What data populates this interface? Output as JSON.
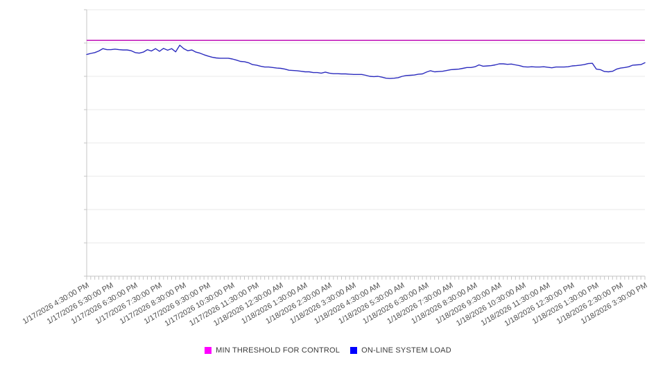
{
  "chart_data": {
    "type": "line",
    "title": "",
    "xlabel": "",
    "ylabel": "",
    "y_axis": {
      "tick_labels_visible": false,
      "divisions": 8,
      "normalized_range": [
        0,
        100
      ],
      "grid": true
    },
    "legend_position": "bottom",
    "x_labels": [
      "1/17/2026 4:30:00 PM",
      "1/17/2026 5:30:00 PM",
      "1/17/2026 6:30:00 PM",
      "1/17/2026 7:30:00 PM",
      "1/17/2026 8:30:00 PM",
      "1/17/2026 9:30:00 PM",
      "1/17/2026 10:30:00 PM",
      "1/17/2026 11:30:00 PM",
      "1/18/2026 12:30:00 AM",
      "1/18/2026 1:30:00 AM",
      "1/18/2026 2:30:00 AM",
      "1/18/2026 3:30:00 AM",
      "1/18/2026 4:30:00 AM",
      "1/18/2026 5:30:00 AM",
      "1/18/2026 6:30:00 AM",
      "1/18/2026 7:30:00 AM",
      "1/18/2026 8:30:00 AM",
      "1/18/2026 9:30:00 AM",
      "1/18/2026 10:30:00 AM",
      "1/18/2026 11:30:00 AM",
      "1/18/2026 12:30:00 PM",
      "1/18/2026 1:30:00 PM",
      "1/18/2026 2:30:00 PM",
      "1/18/2026 3:30:00 PM"
    ],
    "series": [
      {
        "name": "MIN THRESHOLD FOR CONTROL",
        "kind": "threshold",
        "legend_color": "#FF00FF",
        "stroke_color": "#C41FBC",
        "value": 88.5
      },
      {
        "name": "ON-LINE SYSTEM LOAD",
        "kind": "line",
        "legend_color": "#0000FF",
        "stroke_color": "#2B2BBE",
        "values": [
          83.2,
          83.6,
          83.9,
          84.5,
          85.4,
          85.0,
          85.0,
          85.2,
          85.0,
          84.9,
          84.9,
          84.6,
          83.9,
          83.7,
          84.1,
          85.0,
          84.5,
          85.4,
          84.4,
          85.5,
          84.8,
          85.4,
          84.2,
          86.7,
          85.4,
          84.6,
          84.9,
          84.1,
          83.7,
          83.1,
          82.6,
          82.2,
          81.9,
          81.8,
          81.8,
          81.8,
          81.5,
          81.1,
          80.6,
          80.5,
          80.1,
          79.4,
          79.2,
          78.8,
          78.5,
          78.5,
          78.3,
          78.1,
          78.0,
          77.7,
          77.3,
          77.2,
          77.1,
          76.9,
          76.7,
          76.7,
          76.4,
          76.4,
          76.2,
          76.6,
          76.2,
          76.0,
          76.0,
          75.9,
          75.9,
          75.8,
          75.7,
          75.7,
          75.7,
          75.4,
          75.0,
          74.9,
          75.0,
          74.7,
          74.3,
          74.2,
          74.3,
          74.5,
          75.0,
          75.3,
          75.4,
          75.5,
          75.8,
          75.9,
          76.6,
          77.1,
          76.7,
          76.8,
          76.9,
          77.2,
          77.5,
          77.6,
          77.7,
          78.0,
          78.3,
          78.3,
          78.6,
          79.3,
          78.8,
          78.9,
          79.0,
          79.3,
          79.7,
          79.7,
          79.5,
          79.6,
          79.3,
          79.0,
          78.6,
          78.5,
          78.6,
          78.5,
          78.5,
          78.6,
          78.4,
          78.2,
          78.5,
          78.5,
          78.5,
          78.6,
          78.9,
          79.0,
          79.2,
          79.4,
          79.8,
          79.9,
          77.7,
          77.5,
          76.8,
          76.7,
          76.9,
          77.7,
          78.1,
          78.3,
          78.6,
          79.2,
          79.3,
          79.4,
          80.1
        ]
      }
    ],
    "colors": {
      "grid_line": "#E9E9E9",
      "axis_line": "#C4C4C4",
      "tick_mark": "#C4C4C4",
      "x_label_text": "#4D4D4D",
      "legend_text": "#3A3A3A",
      "background": "#FFFFFF"
    }
  },
  "legend": {
    "items": [
      {
        "label": "MIN THRESHOLD FOR CONTROL",
        "color": "#FF00FF"
      },
      {
        "label": "ON-LINE SYSTEM LOAD",
        "color": "#0000FF"
      }
    ]
  }
}
